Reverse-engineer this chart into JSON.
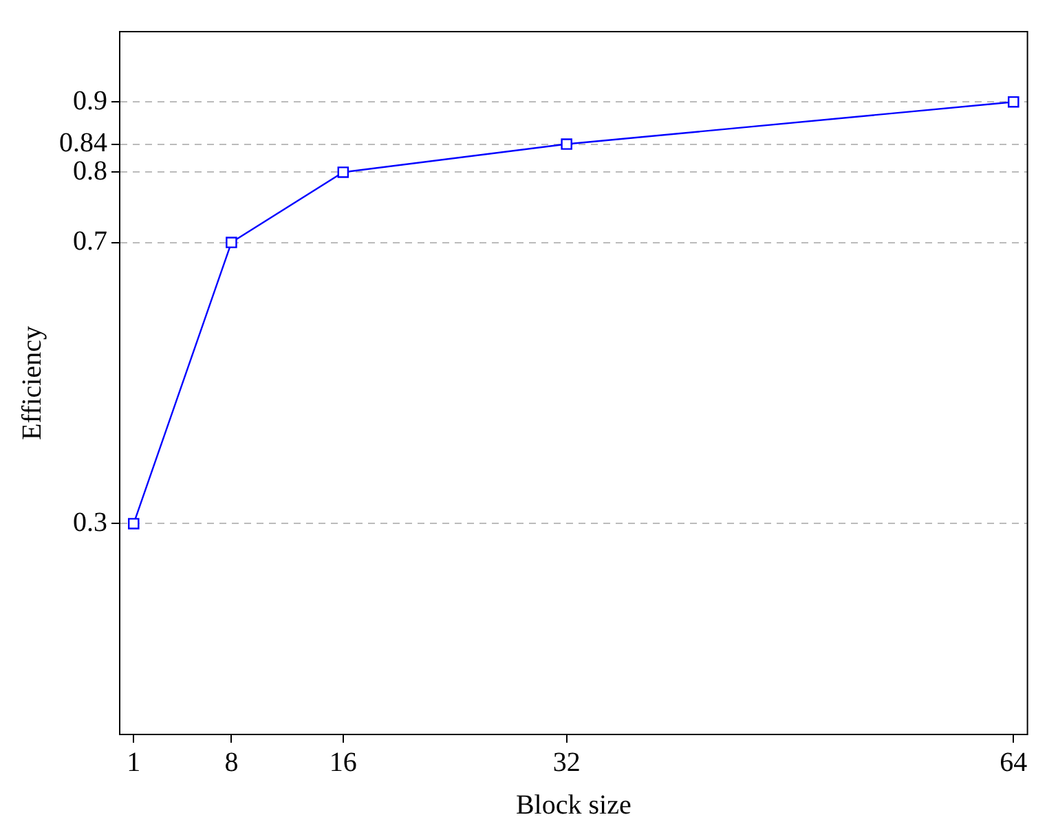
{
  "chart_data": {
    "type": "line",
    "xlabel": "Block size",
    "ylabel": "Efficiency",
    "x": [
      1,
      8,
      16,
      32,
      64
    ],
    "series": [
      {
        "color": "#0000ff",
        "values": [
          0.3,
          0.7,
          0.8,
          0.84,
          0.9
        ]
      }
    ],
    "xlim": [
      0,
      65
    ],
    "ylim": [
      0,
      1
    ],
    "xticks": [
      1,
      8,
      16,
      32,
      64
    ],
    "yticks": [
      0.3,
      0.7,
      0.8,
      0.84,
      0.9
    ],
    "grid": "y",
    "legend": false,
    "marker": "square",
    "line_style": "solid"
  }
}
